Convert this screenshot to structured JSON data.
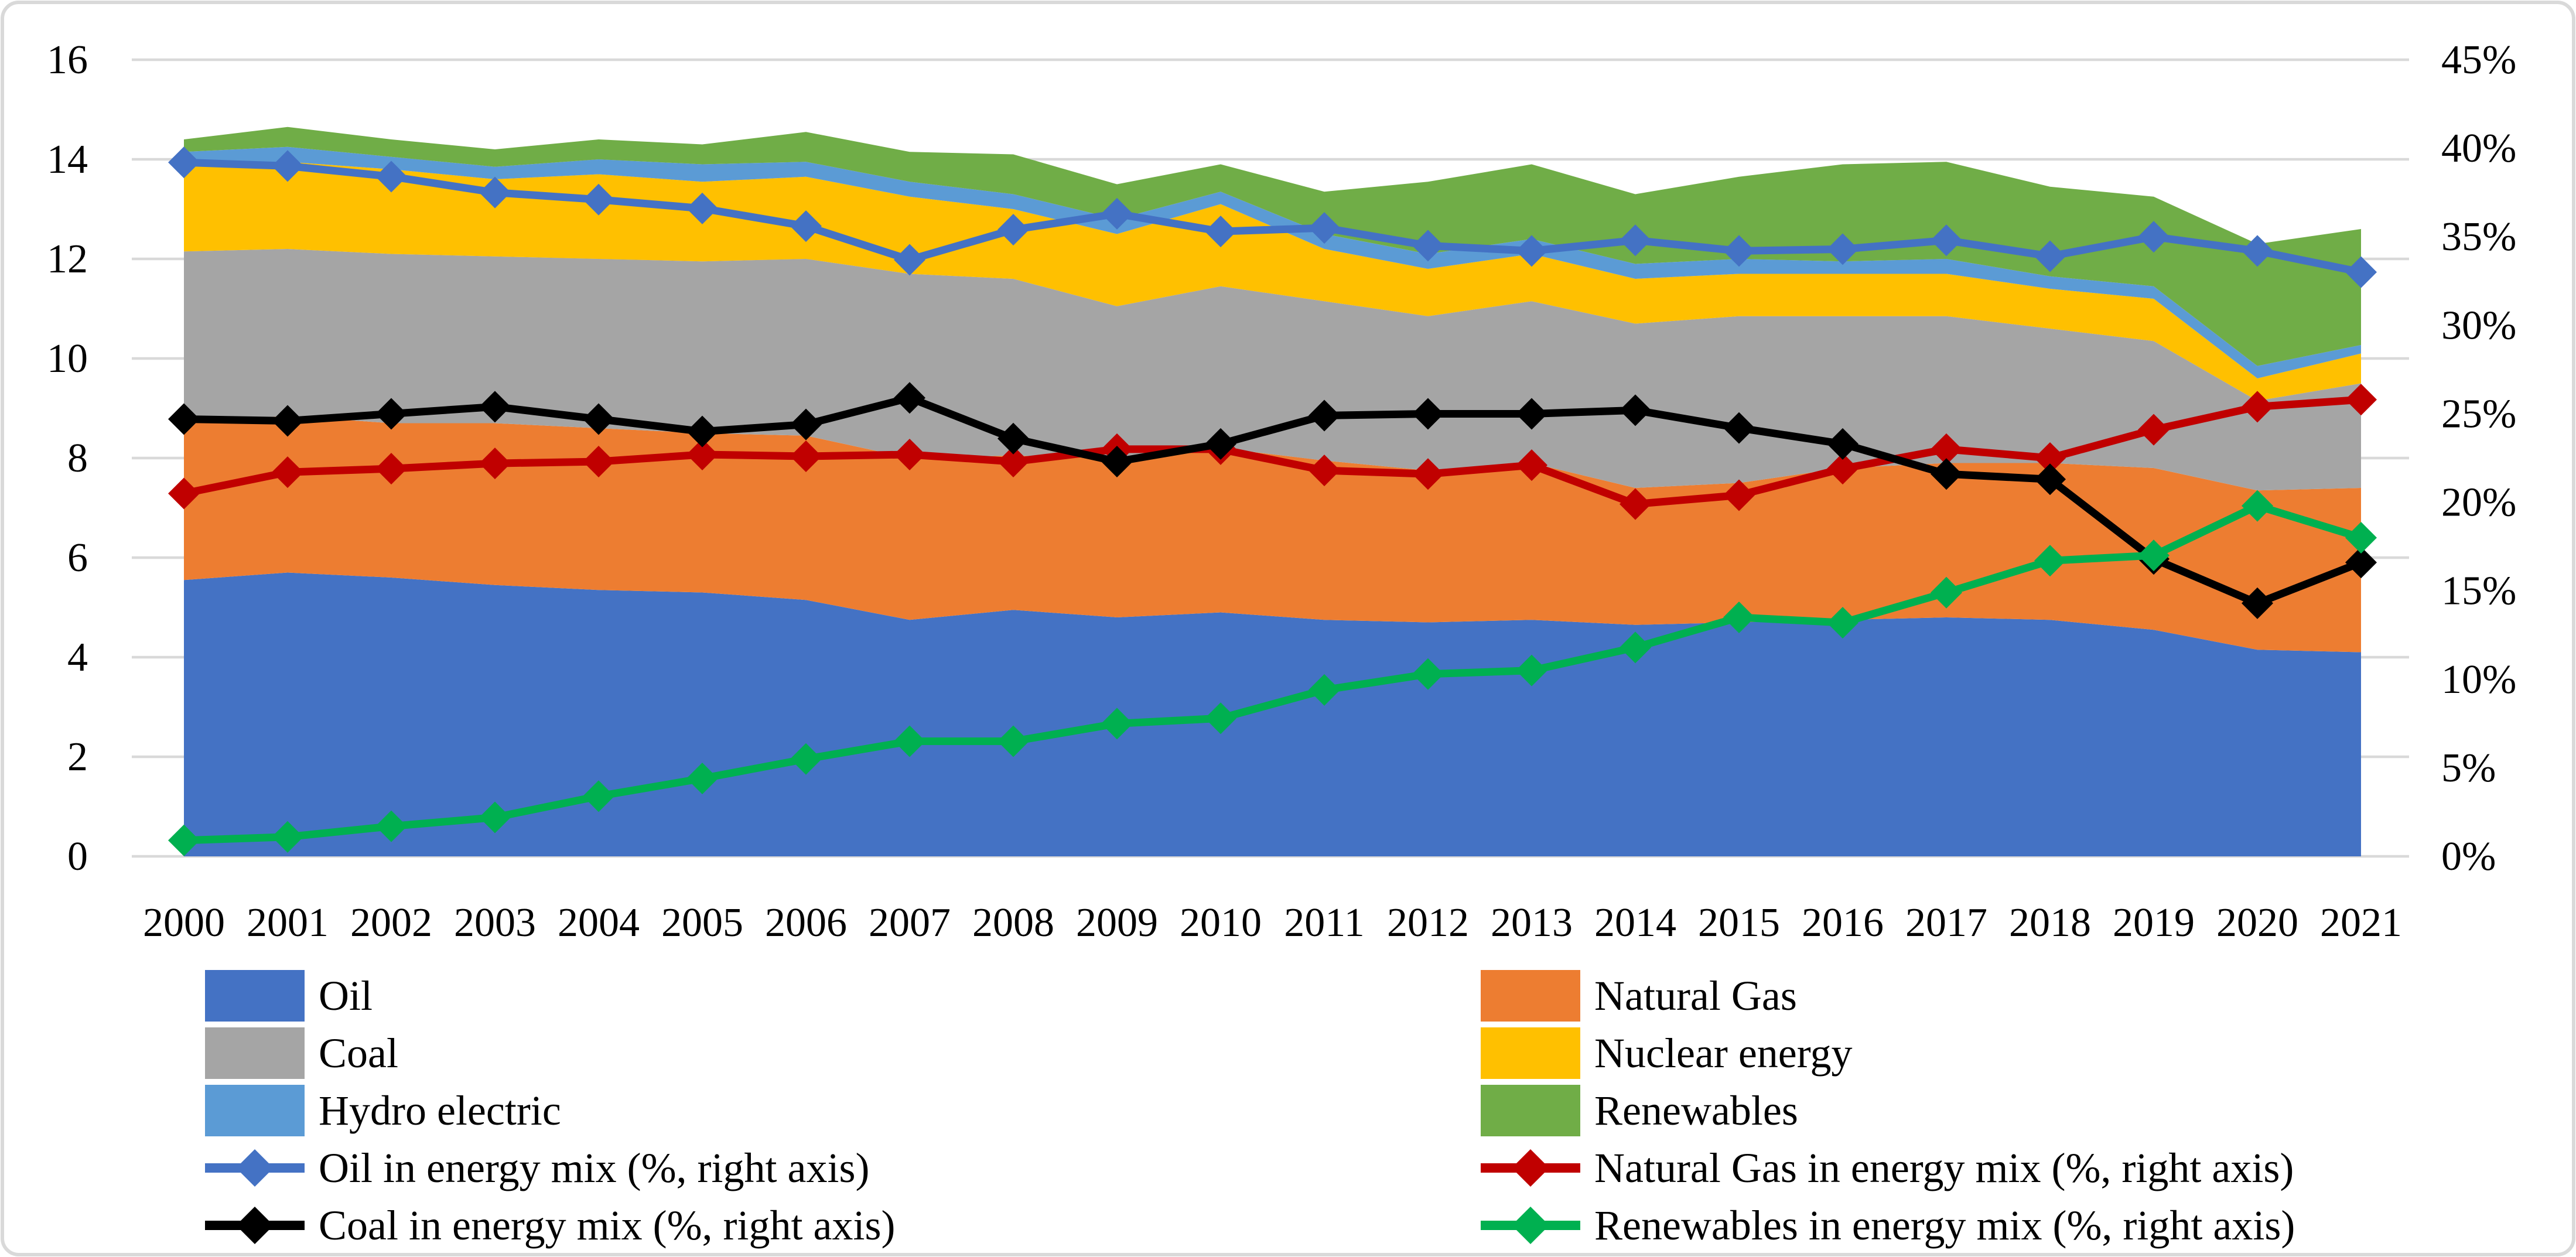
{
  "chart_data": {
    "type": "combo-stacked-area-and-line",
    "title": "",
    "years": [
      "2000",
      "2001",
      "2002",
      "2003",
      "2004",
      "2005",
      "2006",
      "2007",
      "2008",
      "2009",
      "2010",
      "2011",
      "2012",
      "2013",
      "2014",
      "2015",
      "2016",
      "2017",
      "2018",
      "2019",
      "2020",
      "2021"
    ],
    "left_axis": {
      "min": 0,
      "max": 16,
      "step": 2,
      "tick_labels": [
        "0",
        "2",
        "4",
        "6",
        "8",
        "10",
        "12",
        "14",
        "16"
      ]
    },
    "right_axis": {
      "min": 0,
      "max": 45,
      "step": 5,
      "tick_labels": [
        "0%",
        "5%",
        "10%",
        "15%",
        "20%",
        "25%",
        "30%",
        "35%",
        "40%",
        "45%"
      ],
      "unit": "%"
    },
    "grid": true,
    "grid_color": "#D9D9D9",
    "area_series": [
      {
        "name": "Oil",
        "color": "#4472C4",
        "values": [
          5.55,
          5.7,
          5.6,
          5.45,
          5.35,
          5.3,
          5.15,
          4.75,
          4.95,
          4.8,
          4.9,
          4.75,
          4.7,
          4.75,
          4.65,
          4.7,
          4.75,
          4.8,
          4.75,
          4.55,
          4.15,
          4.1
        ]
      },
      {
        "name": "Natural Gas",
        "color": "#ED7D31",
        "values": [
          3.15,
          3.15,
          3.1,
          3.25,
          3.25,
          3.2,
          3.3,
          3.25,
          3.1,
          3.2,
          3.3,
          3.2,
          3.05,
          3.15,
          2.75,
          2.8,
          3.05,
          3.1,
          3.15,
          3.25,
          3.2,
          3.3
        ]
      },
      {
        "name": "Coal",
        "color": "#A5A5A5",
        "values": [
          3.45,
          3.35,
          3.4,
          3.35,
          3.4,
          3.45,
          3.55,
          3.7,
          3.55,
          3.05,
          3.25,
          3.2,
          3.1,
          3.25,
          3.3,
          3.35,
          3.05,
          2.95,
          2.7,
          2.55,
          1.8,
          2.1
        ]
      },
      {
        "name": "Nuclear energy",
        "color": "#FFC000",
        "values": [
          1.7,
          1.75,
          1.7,
          1.55,
          1.7,
          1.6,
          1.65,
          1.55,
          1.4,
          1.45,
          1.65,
          1.05,
          0.95,
          0.95,
          0.9,
          0.85,
          0.85,
          0.85,
          0.8,
          0.85,
          0.45,
          0.6
        ]
      },
      {
        "name": "Hydro electric",
        "color": "#5B9BD5",
        "values": [
          0.3,
          0.3,
          0.25,
          0.25,
          0.3,
          0.35,
          0.3,
          0.3,
          0.3,
          0.3,
          0.25,
          0.3,
          0.3,
          0.3,
          0.3,
          0.3,
          0.25,
          0.3,
          0.25,
          0.25,
          0.25,
          0.17
        ]
      },
      {
        "name": "Renewables",
        "color": "#70AD47",
        "values": [
          0.25,
          0.4,
          0.35,
          0.35,
          0.4,
          0.4,
          0.6,
          0.6,
          0.8,
          0.7,
          0.55,
          0.85,
          1.45,
          1.5,
          1.4,
          1.65,
          1.95,
          1.95,
          1.8,
          1.8,
          2.45,
          2.33
        ]
      }
    ],
    "line_series": [
      {
        "name": "Oil in energy mix (%, right axis)",
        "color": "#4472C4",
        "axis": "right",
        "values": [
          39.2,
          39.0,
          38.4,
          37.5,
          37.1,
          36.6,
          35.6,
          33.7,
          35.4,
          36.3,
          35.3,
          35.5,
          34.5,
          34.2,
          34.8,
          34.2,
          34.3,
          34.8,
          33.9,
          35.0,
          34.2,
          33.0
        ]
      },
      {
        "name": "Natural Gas in energy mix (%, right axis)",
        "color": "#C00000",
        "axis": "right",
        "values": [
          20.5,
          21.7,
          21.9,
          22.2,
          22.3,
          22.7,
          22.6,
          22.7,
          22.3,
          23.0,
          23.0,
          21.8,
          21.6,
          22.1,
          19.9,
          20.4,
          21.9,
          23.0,
          22.5,
          24.1,
          25.4,
          25.8
        ]
      },
      {
        "name": "Coal in energy mix (%, right axis)",
        "color": "#000000",
        "axis": "right",
        "values": [
          24.7,
          24.6,
          25.0,
          25.4,
          24.7,
          24.0,
          24.4,
          25.9,
          23.6,
          22.3,
          23.3,
          24.9,
          25.0,
          25.0,
          25.2,
          24.2,
          23.3,
          21.6,
          21.3,
          16.8,
          14.3,
          16.6
        ]
      },
      {
        "name": "Renewables in energy mix (%, right axis)",
        "color": "#00B050",
        "axis": "right",
        "values": [
          0.9,
          1.1,
          1.7,
          2.2,
          3.4,
          4.4,
          5.5,
          6.5,
          6.5,
          7.5,
          7.8,
          9.4,
          10.3,
          10.5,
          11.8,
          13.5,
          13.2,
          14.9,
          16.7,
          17.0,
          19.8,
          18.0
        ]
      }
    ],
    "legend": {
      "position": "bottom-two-columns",
      "columns": [
        [
          {
            "label": "Oil",
            "marker": "area",
            "color": "#4472C4"
          },
          {
            "label": "Coal",
            "marker": "area",
            "color": "#A5A5A5"
          },
          {
            "label": "Hydro electric",
            "marker": "area",
            "color": "#5B9BD5"
          },
          {
            "label": "Oil in energy mix (%, right axis)",
            "marker": "line-diamond",
            "color": "#4472C4"
          },
          {
            "label": "Coal in energy mix (%, right axis)",
            "marker": "line-diamond",
            "color": "#000000"
          }
        ],
        [
          {
            "label": "Natural Gas",
            "marker": "area",
            "color": "#ED7D31"
          },
          {
            "label": "Nuclear energy",
            "marker": "area",
            "color": "#FFC000"
          },
          {
            "label": "Renewables",
            "marker": "area",
            "color": "#70AD47"
          },
          {
            "label": "Natural Gas in energy mix (%, right axis)",
            "marker": "line-diamond",
            "color": "#C00000"
          },
          {
            "label": "Renewables in energy mix (%, right axis)",
            "marker": "line-diamond",
            "color": "#00B050"
          }
        ]
      ]
    },
    "frame_color": "#D9D9D9",
    "background_color": "#FFFFFF"
  }
}
